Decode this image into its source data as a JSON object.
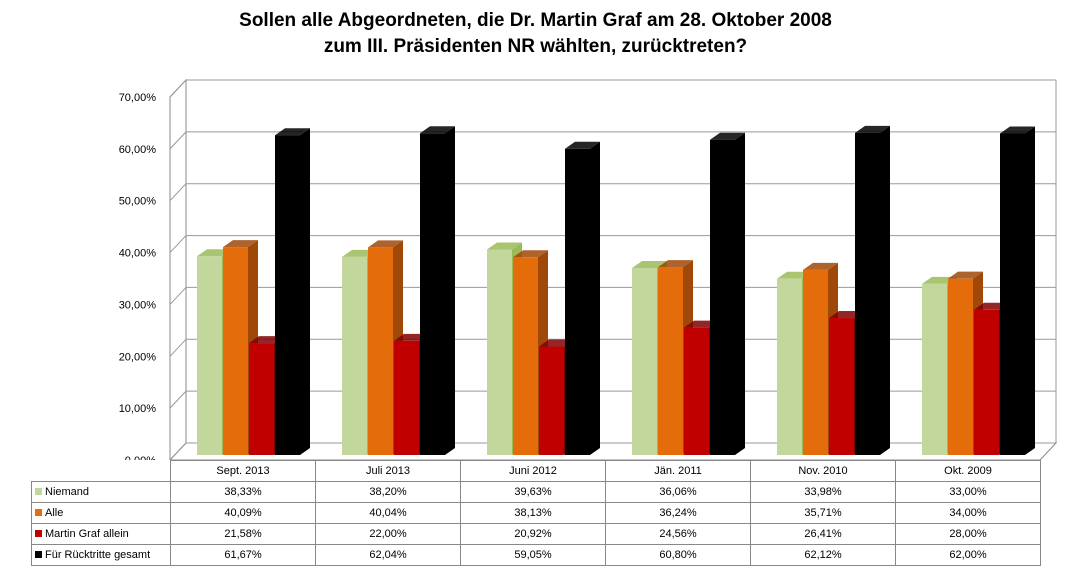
{
  "chart_data": {
    "type": "bar",
    "title_lines": [
      "Sollen alle Abgeordneten, die Dr. Martin Graf am 28. Oktober 2008",
      "zum III. Präsidenten NR wählten, zurücktreten?"
    ],
    "categories": [
      "Sept. 2013",
      "Juli 2013",
      "Juni 2012",
      "Jän. 2011",
      "Nov. 2010",
      "Okt. 2009"
    ],
    "series": [
      {
        "name": "Niemand",
        "color": "#c3d69b",
        "side": "#9bbb59",
        "values": [
          38.33,
          38.2,
          39.63,
          36.06,
          33.98,
          33.0
        ],
        "labels": [
          "38,33%",
          "38,20%",
          "39,63%",
          "36,06%",
          "33,98%",
          "33,00%"
        ]
      },
      {
        "name": "Alle",
        "color": "#e46c0a",
        "side": "#a04808",
        "values": [
          40.09,
          40.04,
          38.13,
          36.24,
          35.71,
          34.0
        ],
        "labels": [
          "40,09%",
          "40,04%",
          "38,13%",
          "36,24%",
          "35,71%",
          "34,00%"
        ]
      },
      {
        "name": "Martin Graf allein",
        "color": "#c00000",
        "side": "#800000",
        "values": [
          21.58,
          22.0,
          20.92,
          24.56,
          26.41,
          28.0
        ],
        "labels": [
          "21,58%",
          "22,00%",
          "20,92%",
          "24,56%",
          "26,41%",
          "28,00%"
        ]
      },
      {
        "name": "Für Rücktritte gesamt",
        "color": "#000000",
        "side": "#000000",
        "values": [
          61.67,
          62.04,
          59.05,
          60.8,
          62.12,
          62.0
        ],
        "labels": [
          "61,67%",
          "62,04%",
          "59,05%",
          "60,80%",
          "62,12%",
          "62,00%"
        ]
      }
    ],
    "ylim": [
      0,
      70
    ],
    "yticks": [
      "0,00%",
      "10,00%",
      "20,00%",
      "30,00%",
      "40,00%",
      "50,00%",
      "60,00%",
      "70,00%"
    ],
    "grid": true,
    "legend": "data-table-below"
  }
}
